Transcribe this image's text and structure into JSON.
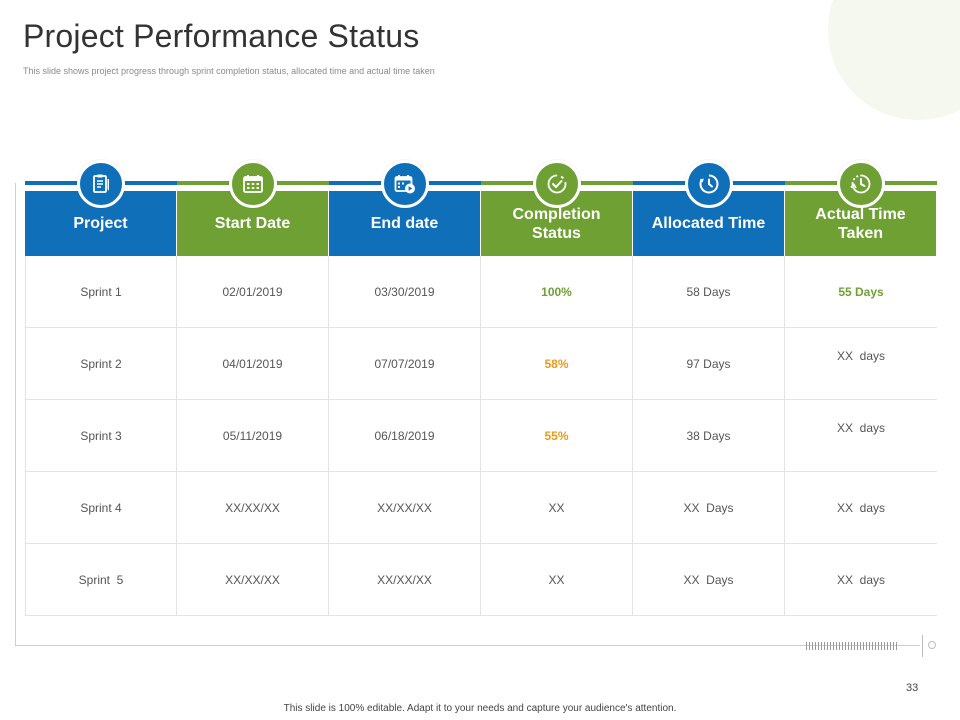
{
  "slide": {
    "title": "Project Performance Status",
    "subtitle": "This slide shows project progress through sprint completion status, allocated time and actual time taken",
    "page_number": "33",
    "footer": "This slide is 100% editable.  Adapt it to your needs and capture your audience's attention."
  },
  "colors": {
    "blue": "#0f6fb8",
    "green": "#6fa033",
    "orange": "#e89a1c"
  },
  "table": {
    "columns": [
      {
        "label": "Project",
        "color": "blue",
        "icon": "clipboard-icon"
      },
      {
        "label": "Start Date",
        "color": "green",
        "icon": "calendar-icon"
      },
      {
        "label": "End date",
        "color": "blue",
        "icon": "calendar-play-icon"
      },
      {
        "label": "Completion Status",
        "color": "green",
        "icon": "check-circle-icon"
      },
      {
        "label": "Allocated Time",
        "color": "blue",
        "icon": "clock-icon"
      },
      {
        "label": "Actual Time Taken",
        "color": "green",
        "icon": "stopwatch-icon"
      }
    ],
    "rows": [
      [
        "Sprint 1",
        "02/01/2019",
        "03/30/2019",
        "100%",
        "58 Days",
        "55 Days"
      ],
      [
        "Sprint 2",
        "04/01/2019",
        "07/07/2019",
        "58%",
        "97 Days",
        "XX  days"
      ],
      [
        "Sprint 3",
        "05/11/2019",
        "06/18/2019",
        "55%",
        "38 Days",
        "XX  days"
      ],
      [
        "Sprint 4",
        "XX/XX/XX",
        "XX/XX/XX",
        "XX",
        "XX  Days",
        "XX  days"
      ],
      [
        "Sprint  5",
        "XX/XX/XX",
        "XX/XX/XX",
        "XX",
        "XX  Days",
        "XX  days"
      ]
    ]
  }
}
